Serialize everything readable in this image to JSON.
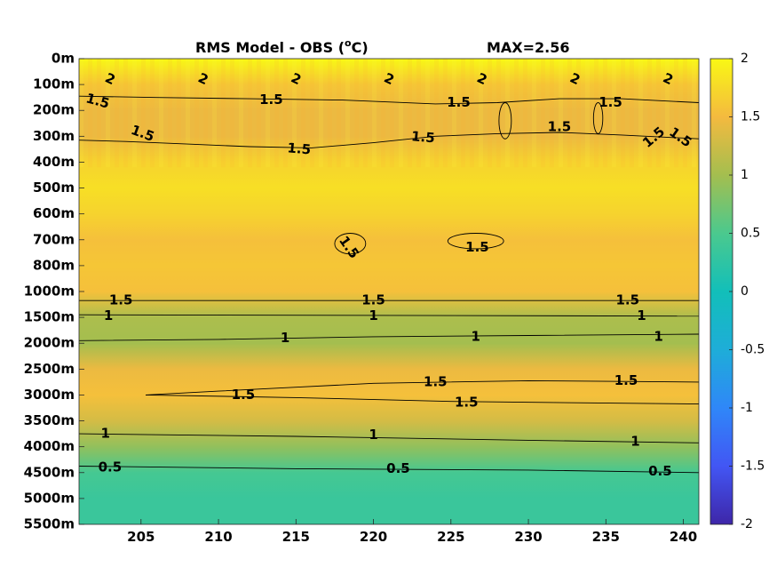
{
  "chart_data": {
    "type": "heatmap",
    "title": "RMS Model - OBS (",
    "title_unit_sup": "o",
    "title_unit_end": "C)",
    "max_label": "MAX=2.56",
    "xlim": [
      201,
      241
    ],
    "x_ticks": [
      205,
      210,
      215,
      220,
      225,
      230,
      235,
      240
    ],
    "y_tick_labels": [
      "0m",
      "100m",
      "200m",
      "300m",
      "400m",
      "500m",
      "600m",
      "700m",
      "800m",
      "1000m",
      "1500m",
      "2000m",
      "2500m",
      "3000m",
      "3500m",
      "4000m",
      "4500m",
      "5000m",
      "5500m"
    ],
    "colorbar": {
      "clim": [
        -2,
        2
      ],
      "ticks": [
        "2",
        "1.5",
        "1",
        "0.5",
        "0",
        "-0.5",
        "-1",
        "-1.5",
        "-2"
      ],
      "colormap": "parula"
    },
    "field_by_depth_index": [
      {
        "depth_index": 0,
        "value": 2.0
      },
      {
        "depth_index": 1,
        "value": 1.6
      },
      {
        "depth_index": 2,
        "value": 1.45
      },
      {
        "depth_index": 3,
        "value": 1.45
      },
      {
        "depth_index": 4,
        "value": 1.7
      },
      {
        "depth_index": 5,
        "value": 1.8
      },
      {
        "depth_index": 6,
        "value": 1.7
      },
      {
        "depth_index": 7,
        "value": 1.55
      },
      {
        "depth_index": 8,
        "value": 1.6
      },
      {
        "depth_index": 9,
        "value": 1.55
      },
      {
        "depth_index": 10,
        "value": 1.05
      },
      {
        "depth_index": 11,
        "value": 1.0
      },
      {
        "depth_index": 12,
        "value": 1.45
      },
      {
        "depth_index": 13,
        "value": 1.55
      },
      {
        "depth_index": 14,
        "value": 1.3
      },
      {
        "depth_index": 15,
        "value": 0.9
      },
      {
        "depth_index": 16,
        "value": 0.45
      },
      {
        "depth_index": 17,
        "value": 0.35
      },
      {
        "depth_index": 18,
        "value": 0.35
      }
    ],
    "contour_labels": [
      {
        "text": "2",
        "x": 203,
        "depth_index": 0.8,
        "rot": 25
      },
      {
        "text": "2",
        "x": 209,
        "depth_index": 0.8,
        "rot": 25
      },
      {
        "text": "2",
        "x": 215,
        "depth_index": 0.8,
        "rot": 25
      },
      {
        "text": "2",
        "x": 221,
        "depth_index": 0.8,
        "rot": 25
      },
      {
        "text": "2",
        "x": 227,
        "depth_index": 0.8,
        "rot": 25
      },
      {
        "text": "2",
        "x": 233,
        "depth_index": 0.8,
        "rot": 25
      },
      {
        "text": "2",
        "x": 239,
        "depth_index": 0.8,
        "rot": 25
      },
      {
        "text": "1.5",
        "x": 202.2,
        "depth_index": 1.65,
        "rot": 15
      },
      {
        "text": "1.5",
        "x": 213.4,
        "depth_index": 1.6,
        "rot": 0
      },
      {
        "text": "1.5",
        "x": 225.5,
        "depth_index": 1.7,
        "rot": 0
      },
      {
        "text": "1.5",
        "x": 235.3,
        "depth_index": 1.7,
        "rot": 0
      },
      {
        "text": "1.5",
        "x": 205.1,
        "depth_index": 2.9,
        "rot": 20
      },
      {
        "text": "1.5",
        "x": 215.2,
        "depth_index": 3.5,
        "rot": 5
      },
      {
        "text": "1.5",
        "x": 223.2,
        "depth_index": 3.05,
        "rot": 5
      },
      {
        "text": "1.5",
        "x": 232.0,
        "depth_index": 2.65,
        "rot": 0
      },
      {
        "text": "1.5",
        "x": 238.1,
        "depth_index": 3.05,
        "rot": -40
      },
      {
        "text": "1.5",
        "x": 239.8,
        "depth_index": 3.05,
        "rot": 35
      },
      {
        "text": "1.5",
        "x": 218.4,
        "depth_index": 7.3,
        "rot": 55
      },
      {
        "text": "1.5",
        "x": 226.7,
        "depth_index": 7.3,
        "rot": 0
      },
      {
        "text": "1.5",
        "x": 203.7,
        "depth_index": 9.35,
        "rot": 0
      },
      {
        "text": "1.5",
        "x": 220.0,
        "depth_index": 9.35,
        "rot": 0
      },
      {
        "text": "1.5",
        "x": 236.4,
        "depth_index": 9.35,
        "rot": 0
      },
      {
        "text": "1",
        "x": 202.9,
        "depth_index": 9.95,
        "rot": 0
      },
      {
        "text": "1",
        "x": 220.0,
        "depth_index": 9.95,
        "rot": 0
      },
      {
        "text": "1",
        "x": 237.3,
        "depth_index": 9.95,
        "rot": 0
      },
      {
        "text": "1",
        "x": 214.3,
        "depth_index": 10.8,
        "rot": 0
      },
      {
        "text": "1",
        "x": 226.6,
        "depth_index": 10.75,
        "rot": 0
      },
      {
        "text": "1",
        "x": 238.4,
        "depth_index": 10.75,
        "rot": 0
      },
      {
        "text": "1.5",
        "x": 211.6,
        "depth_index": 13.0,
        "rot": 0
      },
      {
        "text": "1.5",
        "x": 224.0,
        "depth_index": 12.5,
        "rot": 0
      },
      {
        "text": "1.5",
        "x": 236.3,
        "depth_index": 12.45,
        "rot": 0
      },
      {
        "text": "1.5",
        "x": 226.0,
        "depth_index": 13.3,
        "rot": 0
      },
      {
        "text": "1",
        "x": 202.7,
        "depth_index": 14.5,
        "rot": 0
      },
      {
        "text": "1",
        "x": 220.0,
        "depth_index": 14.55,
        "rot": 0
      },
      {
        "text": "1",
        "x": 236.9,
        "depth_index": 14.8,
        "rot": 0
      },
      {
        "text": "0.5",
        "x": 203.0,
        "depth_index": 15.8,
        "rot": 0
      },
      {
        "text": "0.5",
        "x": 221.6,
        "depth_index": 15.85,
        "rot": 0
      },
      {
        "text": "0.5",
        "x": 238.5,
        "depth_index": 15.95,
        "rot": 0
      }
    ],
    "contour_lines": [
      {
        "level": 1.5,
        "points": [
          [
            201,
            1.45
          ],
          [
            206,
            1.5
          ],
          [
            212,
            1.55
          ],
          [
            218,
            1.6
          ],
          [
            224,
            1.75
          ],
          [
            228,
            1.7
          ],
          [
            232,
            1.55
          ],
          [
            236,
            1.55
          ],
          [
            241,
            1.7
          ]
        ]
      },
      {
        "level": 1.5,
        "points": [
          [
            201,
            3.15
          ],
          [
            204,
            3.2
          ],
          [
            208,
            3.3
          ],
          [
            212,
            3.4
          ],
          [
            216,
            3.45
          ],
          [
            220,
            3.25
          ],
          [
            224,
            3.0
          ],
          [
            228,
            2.9
          ],
          [
            232,
            2.85
          ],
          [
            236,
            2.95
          ],
          [
            241,
            3.1
          ]
        ]
      },
      {
        "level": 1.5,
        "points": [
          [
            201,
            9.35
          ],
          [
            241,
            9.35
          ]
        ]
      },
      {
        "level": 1,
        "points": [
          [
            201,
            9.9
          ],
          [
            241,
            9.95
          ]
        ]
      },
      {
        "level": 1,
        "points": [
          [
            201,
            10.9
          ],
          [
            210,
            10.85
          ],
          [
            220,
            10.75
          ],
          [
            230,
            10.7
          ],
          [
            241,
            10.65
          ]
        ]
      },
      {
        "level": 1.5,
        "points": [
          [
            205.3,
            13.0
          ],
          [
            210,
            12.85
          ],
          [
            215,
            12.7
          ],
          [
            220,
            12.55
          ],
          [
            230,
            12.45
          ],
          [
            241,
            12.5
          ]
        ]
      },
      {
        "level": 1.5,
        "points": [
          [
            205.3,
            13.0
          ],
          [
            215,
            13.1
          ],
          [
            225,
            13.25
          ],
          [
            241,
            13.35
          ]
        ]
      },
      {
        "level": 1,
        "points": [
          [
            201,
            14.5
          ],
          [
            215,
            14.6
          ],
          [
            230,
            14.75
          ],
          [
            241,
            14.85
          ]
        ]
      },
      {
        "level": 0.5,
        "points": [
          [
            201,
            15.75
          ],
          [
            215,
            15.85
          ],
          [
            230,
            15.9
          ],
          [
            241,
            16.0
          ]
        ]
      }
    ],
    "contour_blobs": [
      {
        "level": 1.5,
        "x": 218.5,
        "depth_index": 7.15,
        "rx": 1.0,
        "ry": 0.4
      },
      {
        "level": 1.5,
        "x": 226.6,
        "depth_index": 7.05,
        "rx": 1.8,
        "ry": 0.3
      },
      {
        "level": 1.5,
        "x": 228.5,
        "depth_index": 2.4,
        "rx": 0.4,
        "ry": 0.7
      },
      {
        "level": 1.5,
        "x": 234.5,
        "depth_index": 2.3,
        "rx": 0.3,
        "ry": 0.6
      }
    ]
  }
}
